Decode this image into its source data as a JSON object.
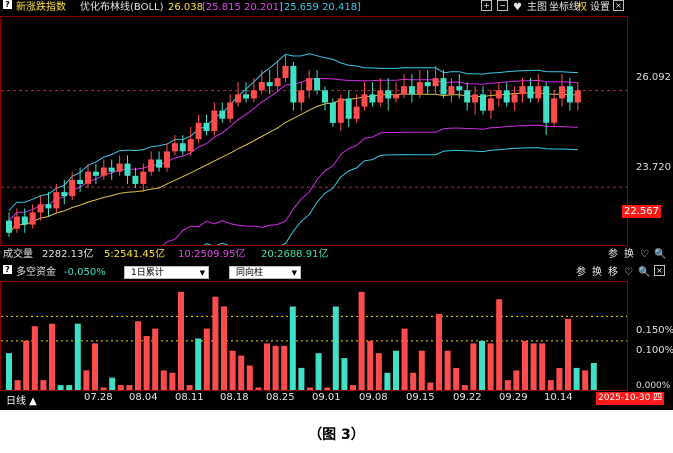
{
  "header": {
    "index_name": "新涨跌指数",
    "indicator_name": "优化布林线(BOLL)",
    "boll_mid": "26.038",
    "boll_up_lo": "[25.815 20.201]",
    "boll_band": "[25.659 20.418]",
    "controls": {
      "plus": "+",
      "minus": "−",
      "heart": "♥",
      "main_chart": "主图",
      "axis": "坐标线",
      "rights": "权",
      "settings": "设置",
      "close": "×"
    }
  },
  "price_axis": {
    "label_high": "26.092",
    "label_mid": "23.720",
    "label_current": "22.567"
  },
  "volume_bar": {
    "label": "成交量",
    "total": "2282.13亿",
    "ma5": "5:2541.45亿",
    "ma10": "10:2509.95亿",
    "ma20": "20:2688.91亿",
    "icons": {
      "ref": "参",
      "swap": "换",
      "heart": "♡",
      "search": "🔍"
    }
  },
  "fund_panel": {
    "title": "多空资金",
    "value": "-0.050%",
    "mode_select": "1日累计",
    "direction_select": "同向柱",
    "icons": {
      "ref": "参",
      "swap": "换",
      "move": "移",
      "heart": "♡",
      "search": "🔍",
      "close": "×"
    },
    "axis_labels": [
      "0.150%",
      "0.100%",
      "0.000%"
    ]
  },
  "bottom": {
    "period": "日线",
    "dates": [
      "07.28",
      "08.04",
      "08.11",
      "08.18",
      "08.25",
      "09.01",
      "09.08",
      "09.15",
      "09.22",
      "09.29",
      "10.14"
    ],
    "current_date": "2025-10-30 四"
  },
  "caption": "（图 3）",
  "colors": {
    "up": "#ff4d4d",
    "down": "#3fe0c5",
    "upper": "#3bc8e6",
    "lower": "#d12be6",
    "mid": "#d8c24a",
    "accent_red": "#ff1a1a",
    "yellow": "#f0e000"
  },
  "chart_data": {
    "type": "candlestick",
    "price_ylim": [
      22.3,
      27.9
    ],
    "candles": [
      [
        22.9,
        22.6,
        23.1,
        22.5
      ],
      [
        22.7,
        23.0,
        23.2,
        22.6
      ],
      [
        23.0,
        22.8,
        23.2,
        22.6
      ],
      [
        22.8,
        23.1,
        23.3,
        22.7
      ],
      [
        23.1,
        23.3,
        23.5,
        22.9
      ],
      [
        23.3,
        23.2,
        23.6,
        23.0
      ],
      [
        23.2,
        23.6,
        23.8,
        23.1
      ],
      [
        23.6,
        23.5,
        23.9,
        23.3
      ],
      [
        23.5,
        23.9,
        24.1,
        23.4
      ],
      [
        23.9,
        23.8,
        24.2,
        23.6
      ],
      [
        23.8,
        24.1,
        24.3,
        23.7
      ],
      [
        24.1,
        24.0,
        24.3,
        23.8
      ],
      [
        24.0,
        24.2,
        24.4,
        23.9
      ],
      [
        24.2,
        24.1,
        24.4,
        23.9
      ],
      [
        24.1,
        24.3,
        24.5,
        24.0
      ],
      [
        24.3,
        24.0,
        24.5,
        23.8
      ],
      [
        24.0,
        23.8,
        24.2,
        23.7
      ],
      [
        23.8,
        24.1,
        24.3,
        23.6
      ],
      [
        24.1,
        24.4,
        24.6,
        24.0
      ],
      [
        24.4,
        24.2,
        24.6,
        24.1
      ],
      [
        24.2,
        24.6,
        24.8,
        24.1
      ],
      [
        24.6,
        24.8,
        25.0,
        24.5
      ],
      [
        24.8,
        24.6,
        25.0,
        24.5
      ],
      [
        24.6,
        24.9,
        25.2,
        24.5
      ],
      [
        24.9,
        25.3,
        25.5,
        24.8
      ],
      [
        25.3,
        25.1,
        25.5,
        25.0
      ],
      [
        25.1,
        25.6,
        25.8,
        25.0
      ],
      [
        25.6,
        25.4,
        25.8,
        25.3
      ],
      [
        25.4,
        25.8,
        26.0,
        25.3
      ],
      [
        25.8,
        26.0,
        26.3,
        25.7
      ],
      [
        26.0,
        25.9,
        26.3,
        25.8
      ],
      [
        25.9,
        26.1,
        26.4,
        25.8
      ],
      [
        26.1,
        26.3,
        26.6,
        26.0
      ],
      [
        26.3,
        26.2,
        26.6,
        26.0
      ],
      [
        26.2,
        26.4,
        26.8,
        26.1
      ],
      [
        26.4,
        26.7,
        27.0,
        26.3
      ],
      [
        26.7,
        25.8,
        26.8,
        25.6
      ],
      [
        25.8,
        26.1,
        26.3,
        25.6
      ],
      [
        26.1,
        26.4,
        26.6,
        25.9
      ],
      [
        26.4,
        26.1,
        26.6,
        26.0
      ],
      [
        26.1,
        25.8,
        26.2,
        25.6
      ],
      [
        25.8,
        25.3,
        25.9,
        25.2
      ],
      [
        25.3,
        25.9,
        26.0,
        25.1
      ],
      [
        25.9,
        25.4,
        26.1,
        25.2
      ],
      [
        25.4,
        25.7,
        26.0,
        25.3
      ],
      [
        25.7,
        26.0,
        26.3,
        25.6
      ],
      [
        26.0,
        25.8,
        26.3,
        25.7
      ],
      [
        25.8,
        26.1,
        26.4,
        25.7
      ],
      [
        26.1,
        25.9,
        26.4,
        25.6
      ],
      [
        25.9,
        26.0,
        26.3,
        25.8
      ],
      [
        26.0,
        26.2,
        26.5,
        25.9
      ],
      [
        26.2,
        26.0,
        26.5,
        25.8
      ],
      [
        26.0,
        26.3,
        26.6,
        25.9
      ],
      [
        26.3,
        26.2,
        26.6,
        26.0
      ],
      [
        26.2,
        26.4,
        26.7,
        26.0
      ],
      [
        26.4,
        26.0,
        26.6,
        25.9
      ],
      [
        26.0,
        26.2,
        26.4,
        25.8
      ],
      [
        26.2,
        26.1,
        26.5,
        25.9
      ],
      [
        26.1,
        25.8,
        26.3,
        25.6
      ],
      [
        25.8,
        26.0,
        26.2,
        25.5
      ],
      [
        26.0,
        25.6,
        26.2,
        25.5
      ],
      [
        25.6,
        25.9,
        26.1,
        25.4
      ],
      [
        25.9,
        26.1,
        26.3,
        25.7
      ],
      [
        26.1,
        25.8,
        26.3,
        25.7
      ],
      [
        25.8,
        26.0,
        26.2,
        25.6
      ],
      [
        26.0,
        26.2,
        26.4,
        25.8
      ],
      [
        26.2,
        25.9,
        26.4,
        25.8
      ],
      [
        25.9,
        26.2,
        26.5,
        25.8
      ],
      [
        26.2,
        25.3,
        26.3,
        25.0
      ],
      [
        25.3,
        25.9,
        26.1,
        25.2
      ],
      [
        25.9,
        26.2,
        26.5,
        25.7
      ],
      [
        26.2,
        25.8,
        26.4,
        25.6
      ],
      [
        25.8,
        26.1,
        26.3,
        25.6
      ]
    ],
    "fund_flow_ylim": [
      0,
      0.22
    ],
    "fund_flow": [
      [
        0.075,
        "d"
      ],
      [
        0.02,
        "u"
      ],
      [
        0.1,
        "u"
      ],
      [
        0.13,
        "u"
      ],
      [
        0.02,
        "u"
      ],
      [
        0.135,
        "u"
      ],
      [
        0.01,
        "d"
      ],
      [
        0.01,
        "d"
      ],
      [
        0.135,
        "d"
      ],
      [
        0.04,
        "u"
      ],
      [
        0.095,
        "u"
      ],
      [
        0.005,
        "u"
      ],
      [
        0.025,
        "d"
      ],
      [
        0.01,
        "u"
      ],
      [
        0.01,
        "u"
      ],
      [
        0.14,
        "u"
      ],
      [
        0.11,
        "u"
      ],
      [
        0.125,
        "u"
      ],
      [
        0.04,
        "u"
      ],
      [
        0.035,
        "u"
      ],
      [
        0.2,
        "u"
      ],
      [
        0.01,
        "u"
      ],
      [
        0.105,
        "d"
      ],
      [
        0.125,
        "u"
      ],
      [
        0.19,
        "u"
      ],
      [
        0.17,
        "u"
      ],
      [
        0.08,
        "u"
      ],
      [
        0.07,
        "u"
      ],
      [
        0.05,
        "u"
      ],
      [
        0.005,
        "u"
      ],
      [
        0.095,
        "u"
      ],
      [
        0.09,
        "u"
      ],
      [
        0.09,
        "u"
      ],
      [
        0.17,
        "d"
      ],
      [
        0.045,
        "d"
      ],
      [
        0.005,
        "u"
      ],
      [
        0.075,
        "d"
      ],
      [
        0.005,
        "u"
      ],
      [
        0.17,
        "d"
      ],
      [
        0.065,
        "d"
      ],
      [
        0.01,
        "u"
      ],
      [
        0.2,
        "u"
      ],
      [
        0.1,
        "u"
      ],
      [
        0.075,
        "u"
      ],
      [
        0.035,
        "d"
      ],
      [
        0.08,
        "d"
      ],
      [
        0.125,
        "u"
      ],
      [
        0.035,
        "u"
      ],
      [
        0.08,
        "u"
      ],
      [
        0.015,
        "u"
      ],
      [
        0.155,
        "u"
      ],
      [
        0.08,
        "u"
      ],
      [
        0.045,
        "u"
      ],
      [
        0.01,
        "u"
      ],
      [
        0.095,
        "u"
      ],
      [
        0.1,
        "d"
      ],
      [
        0.095,
        "u"
      ],
      [
        0.185,
        "u"
      ],
      [
        0.02,
        "u"
      ],
      [
        0.04,
        "u"
      ],
      [
        0.1,
        "u"
      ],
      [
        0.095,
        "u"
      ],
      [
        0.095,
        "u"
      ],
      [
        0.02,
        "u"
      ],
      [
        0.045,
        "u"
      ],
      [
        0.145,
        "u"
      ],
      [
        0.045,
        "d"
      ],
      [
        0.04,
        "u"
      ],
      [
        0.055,
        "d"
      ]
    ]
  }
}
